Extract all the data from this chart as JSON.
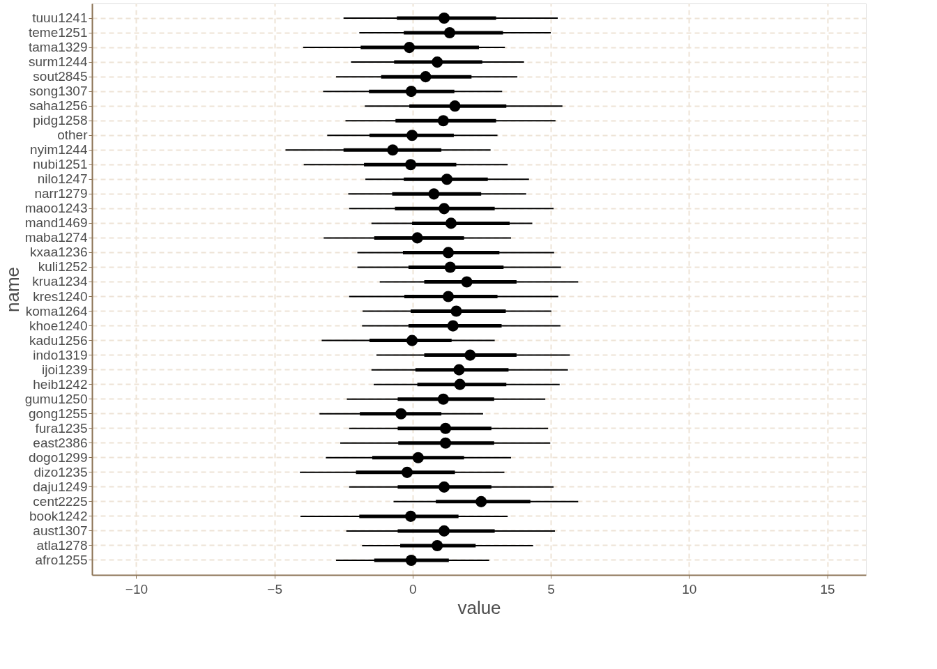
{
  "chart_data": {
    "type": "box",
    "orientation": "horizontal",
    "xlabel": "value",
    "ylabel": "name",
    "categories": [
      "tuuu1241",
      "teme1251",
      "tama1329",
      "surm1244",
      "sout2845",
      "song1307",
      "saha1256",
      "pidg1258",
      "other",
      "nyim1244",
      "nubi1251",
      "nilo1247",
      "narr1279",
      "maoo1243",
      "mand1469",
      "maba1274",
      "kxaa1236",
      "kuli1252",
      "krua1234",
      "kres1240",
      "koma1264",
      "khoe1240",
      "kadu1256",
      "indo1319",
      "ijoi1239",
      "heib1242",
      "gumu1250",
      "gong1255",
      "fura1235",
      "east2386",
      "dogo1299",
      "dizo1235",
      "daju1249",
      "cent2225",
      "book1242",
      "aust1307",
      "atla1278",
      "afro1255"
    ],
    "xlim": [
      -11.6,
      16.4
    ],
    "xticks": [
      -10,
      -5,
      0,
      5,
      10,
      15
    ],
    "grid": true,
    "series": [
      {
        "color": "#000000",
        "boxes": [
          {
            "low": -2.5,
            "q1": -0.57,
            "median": 1.14,
            "q3": 3.02,
            "high": 5.25
          },
          {
            "low": -1.93,
            "q1": -0.32,
            "median": 1.34,
            "q3": 3.27,
            "high": 5.0
          },
          {
            "low": -3.96,
            "q1": -1.88,
            "median": -0.12,
            "q3": 2.4,
            "high": 3.34
          },
          {
            "low": -2.23,
            "q1": -0.67,
            "median": 0.89,
            "q3": 2.52,
            "high": 4.03
          },
          {
            "low": -2.77,
            "q1": -1.14,
            "median": 0.47,
            "q3": 2.13,
            "high": 3.79
          },
          {
            "low": -3.24,
            "q1": -1.58,
            "median": -0.05,
            "q3": 1.51,
            "high": 3.24
          },
          {
            "low": -1.73,
            "q1": -0.12,
            "median": 1.53,
            "q3": 3.39,
            "high": 5.42
          },
          {
            "low": -2.43,
            "q1": -0.62,
            "median": 1.11,
            "q3": 3.02,
            "high": 5.17
          },
          {
            "low": -3.09,
            "q1": -1.56,
            "median": -0.02,
            "q3": 1.49,
            "high": 3.07
          },
          {
            "low": -4.6,
            "q1": -2.5,
            "median": -0.72,
            "q3": 1.04,
            "high": 2.82
          },
          {
            "low": -3.94,
            "q1": -1.76,
            "median": -0.07,
            "q3": 1.58,
            "high": 3.44
          },
          {
            "low": -1.71,
            "q1": -0.32,
            "median": 1.24,
            "q3": 2.72,
            "high": 4.21
          },
          {
            "low": -2.33,
            "q1": -0.74,
            "median": 0.77,
            "q3": 2.48,
            "high": 4.11
          },
          {
            "low": -2.3,
            "q1": -0.64,
            "median": 1.14,
            "q3": 2.97,
            "high": 5.1
          },
          {
            "low": -1.49,
            "q1": -0.02,
            "median": 1.39,
            "q3": 3.51,
            "high": 4.33
          },
          {
            "low": -3.22,
            "q1": -1.39,
            "median": 0.17,
            "q3": 1.86,
            "high": 3.56
          },
          {
            "low": -2.0,
            "q1": -0.35,
            "median": 1.29,
            "q3": 3.14,
            "high": 5.12
          },
          {
            "low": -2.0,
            "q1": -0.15,
            "median": 1.36,
            "q3": 3.29,
            "high": 5.37
          },
          {
            "low": -1.19,
            "q1": 0.42,
            "median": 1.96,
            "q3": 3.76,
            "high": 5.99
          },
          {
            "low": -2.3,
            "q1": -0.3,
            "median": 1.29,
            "q3": 3.07,
            "high": 5.27
          },
          {
            "low": -1.81,
            "q1": -0.07,
            "median": 1.58,
            "q3": 3.37,
            "high": 5.02
          },
          {
            "low": -1.83,
            "q1": -0.15,
            "median": 1.46,
            "q3": 3.22,
            "high": 5.35
          },
          {
            "low": -3.29,
            "q1": -1.56,
            "median": -0.02,
            "q3": 1.41,
            "high": 2.97
          },
          {
            "low": -1.31,
            "q1": 0.42,
            "median": 2.08,
            "q3": 3.76,
            "high": 5.69
          },
          {
            "low": -1.49,
            "q1": 0.1,
            "median": 1.68,
            "q3": 3.47,
            "high": 5.62
          },
          {
            "low": -1.41,
            "q1": 0.17,
            "median": 1.71,
            "q3": 3.39,
            "high": 5.32
          },
          {
            "low": -2.38,
            "q1": -0.54,
            "median": 1.11,
            "q3": 2.95,
            "high": 4.8
          },
          {
            "low": -3.37,
            "q1": -1.91,
            "median": -0.42,
            "q3": 1.04,
            "high": 2.55
          },
          {
            "low": -2.3,
            "q1": -0.54,
            "median": 1.19,
            "q3": 2.85,
            "high": 4.9
          },
          {
            "low": -2.62,
            "q1": -0.52,
            "median": 1.19,
            "q3": 2.95,
            "high": 4.98
          },
          {
            "low": -3.14,
            "q1": -1.46,
            "median": 0.2,
            "q3": 1.86,
            "high": 3.56
          },
          {
            "low": -4.08,
            "q1": -2.05,
            "median": -0.2,
            "q3": 1.53,
            "high": 3.32
          },
          {
            "low": -2.3,
            "q1": -0.54,
            "median": 1.14,
            "q3": 2.85,
            "high": 5.1
          },
          {
            "low": -0.69,
            "q1": 0.84,
            "median": 2.48,
            "q3": 4.26,
            "high": 5.99
          },
          {
            "low": -4.06,
            "q1": -1.93,
            "median": -0.07,
            "q3": 1.66,
            "high": 3.44
          },
          {
            "low": -2.4,
            "q1": -0.54,
            "median": 1.14,
            "q3": 2.97,
            "high": 5.15
          },
          {
            "low": -1.83,
            "q1": -0.45,
            "median": 0.89,
            "q3": 2.28,
            "high": 4.36
          },
          {
            "low": -2.77,
            "q1": -1.39,
            "median": -0.05,
            "q3": 1.31,
            "high": 2.77
          }
        ]
      }
    ]
  }
}
